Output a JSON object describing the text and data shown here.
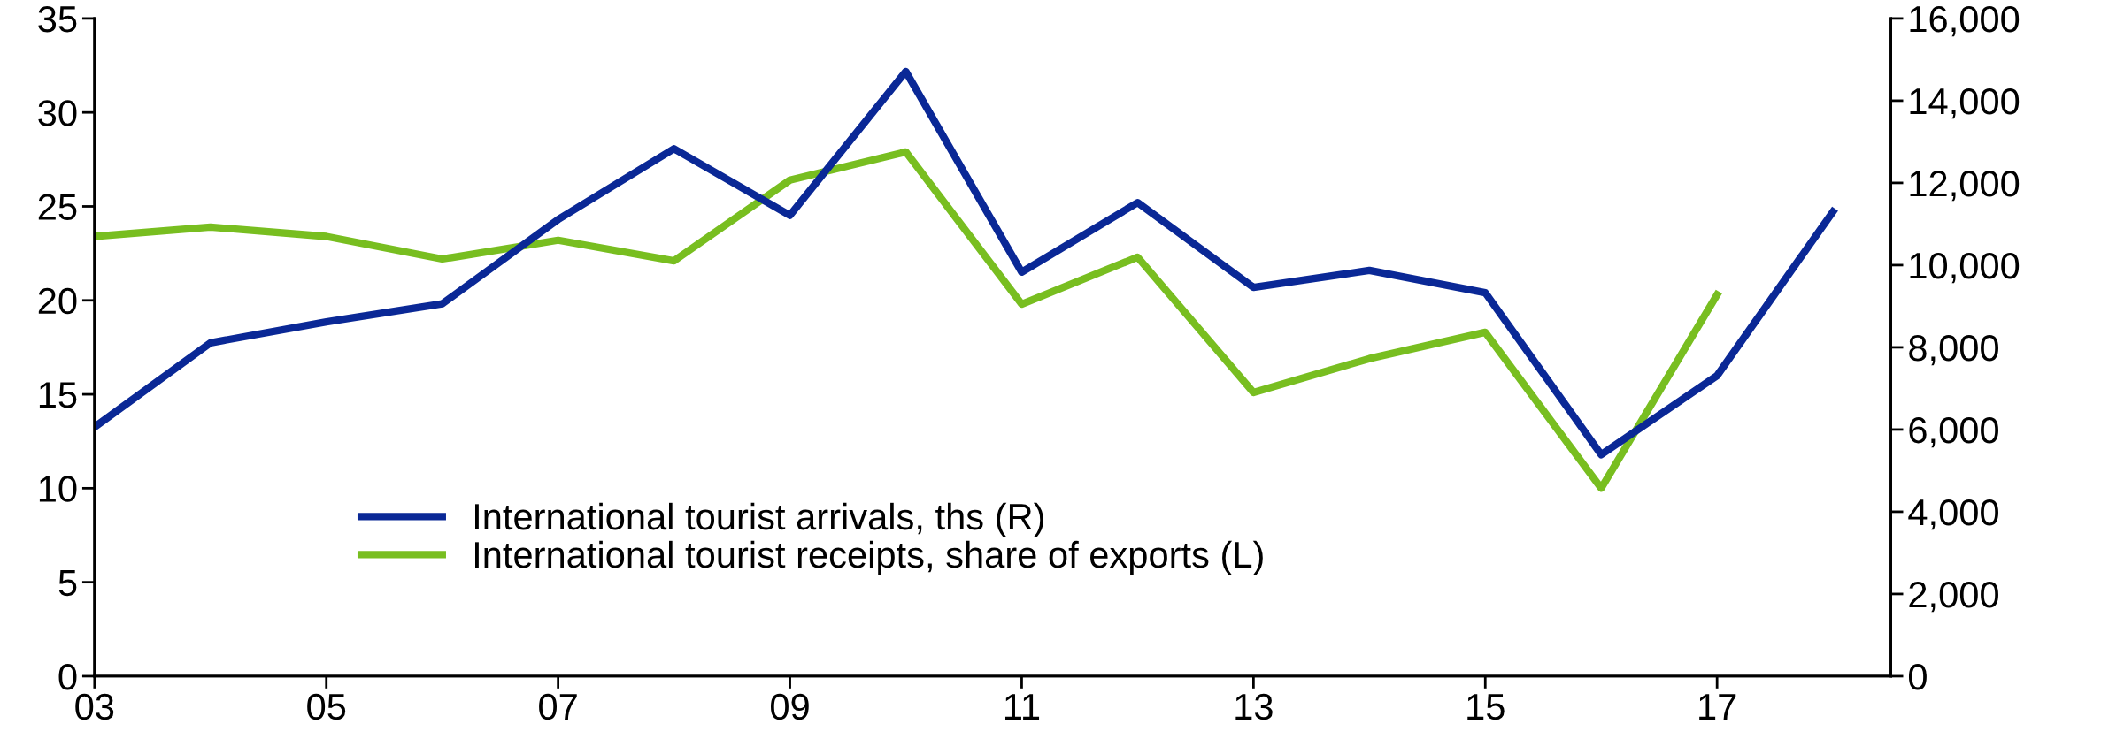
{
  "chart_data": {
    "type": "line",
    "x": [
      2003,
      2004,
      2005,
      2006,
      2007,
      2008,
      2009,
      2010,
      2011,
      2012,
      2013,
      2014,
      2015,
      2016,
      2017,
      2018
    ],
    "series": [
      {
        "name": "International tourist arrivals, ths (R)",
        "color": "#0a2896",
        "axis": "y2",
        "values": [
          6060,
          8110,
          8620,
          9060,
          11110,
          12830,
          11210,
          14710,
          9830,
          11520,
          9460,
          9870,
          9330,
          5390,
          7310,
          11300
        ]
      },
      {
        "name": "International tourist receipts, share of exports (L)",
        "color": "#78be20",
        "values": [
          23.4,
          23.9,
          23.4,
          22.2,
          23.2,
          22.1,
          26.4,
          27.9,
          19.8,
          22.3,
          15.1,
          16.9,
          18.3,
          10.0,
          20.3,
          null
        ]
      }
    ],
    "xlim": [
      2003,
      2018.5
    ],
    "xticks": [
      {
        "value": 2003,
        "label": "03"
      },
      {
        "value": 2005,
        "label": "05"
      },
      {
        "value": 2007,
        "label": "07"
      },
      {
        "value": 2009,
        "label": "09"
      },
      {
        "value": 2011,
        "label": "11"
      },
      {
        "value": 2013,
        "label": "13"
      },
      {
        "value": 2015,
        "label": "15"
      },
      {
        "value": 2017,
        "label": "17"
      }
    ],
    "ylim": [
      0,
      35
    ],
    "yticks": [
      0,
      5,
      10,
      15,
      20,
      25,
      30,
      35
    ],
    "y2lim": [
      0,
      16000
    ],
    "y2ticks": [
      {
        "value": 0,
        "label": "0"
      },
      {
        "value": 2000,
        "label": "2,000"
      },
      {
        "value": 4000,
        "label": "4,000"
      },
      {
        "value": 6000,
        "label": "6,000"
      },
      {
        "value": 8000,
        "label": "8,000"
      },
      {
        "value": 10000,
        "label": "10,000"
      },
      {
        "value": 12000,
        "label": "12,000"
      },
      {
        "value": 14000,
        "label": "14,000"
      },
      {
        "value": 16000,
        "label": "16,000"
      }
    ],
    "legend": "bottom",
    "grid": false,
    "marker": "none",
    "line_style": "solid"
  }
}
